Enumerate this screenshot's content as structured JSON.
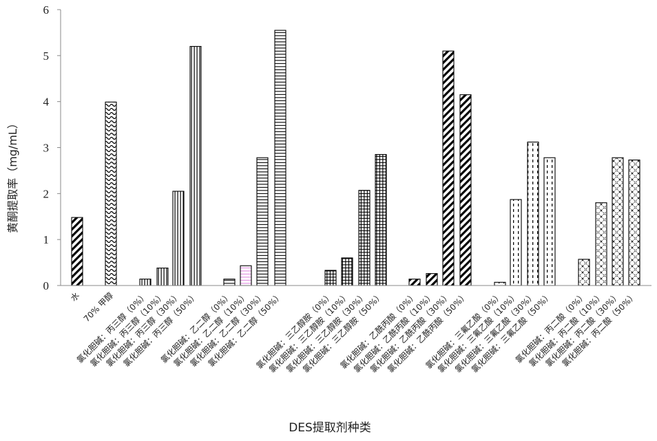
{
  "chart_data": {
    "type": "bar",
    "xlabel": "DES提取剂种类",
    "ylabel": "黄酮提取率（mg/mL）",
    "ylim": [
      0,
      6
    ],
    "yticks": [
      "0",
      "1",
      "2",
      "3",
      "4",
      "5",
      "6"
    ],
    "grid": false,
    "legend": "none",
    "categories": [
      "水",
      "70% 甲醇",
      "氯化胆碱：丙三醇（0%）",
      "氯化胆碱：丙三醇（10%）",
      "氯化胆碱：丙三醇（30%）",
      "氯化胆碱：丙三醇（50%）",
      "氯化胆碱：乙二醇（0%）",
      "氯化胆碱：乙二醇（10%）",
      "氯化胆碱：乙二醇（30%）",
      "氯化胆碱：乙二醇（50%）",
      "氯化胆碱：三乙醇胺（0%）",
      "氯化胆碱：三乙醇胺（10%）",
      "氯化胆碱：三乙醇胺（30%）",
      "氯化胆碱：三乙醇胺（50%）",
      "氯化胆碱：乙酰丙酸（0%）",
      "氯化胆碱：乙酰丙酸（10%）",
      "氯化胆碱：乙酰丙酸（30%）",
      "氯化胆碱：乙酰丙酸（50%）",
      "氯化胆碱：三氟乙酸（0%）",
      "氯化胆碱：三氟乙酸（10%）",
      "氯化胆碱：三氟乙酸（30%）",
      "氯化胆碱：三氟乙酸（50%）",
      "氯化胆碱：丙二酸（0%）",
      "氯化胆碱：丙二酸（10%）",
      "氯化胆碱：丙二酸（30%）",
      "氯化胆碱：丙二酸（50%）"
    ],
    "values": [
      1.48,
      3.99,
      0.14,
      0.38,
      2.05,
      5.2,
      0.14,
      0.43,
      2.78,
      5.55,
      0.33,
      0.6,
      2.07,
      2.85,
      0.14,
      0.26,
      5.1,
      4.15,
      0.07,
      1.87,
      3.12,
      2.78,
      0.57,
      1.8,
      2.78,
      2.73
    ],
    "patterns": [
      "diag",
      "wave",
      "vert",
      "vert",
      "vert",
      "vert",
      "horiz",
      "horiz-pink",
      "horiz",
      "horiz",
      "grid",
      "grid",
      "grid",
      "grid",
      "diag",
      "diag",
      "diag",
      "diag",
      "dash",
      "dash",
      "dash",
      "dash",
      "diamond",
      "diamond",
      "diamond",
      "diamond"
    ],
    "colors": {
      "stroke": "#000000",
      "pink": "#e08ce0"
    }
  }
}
